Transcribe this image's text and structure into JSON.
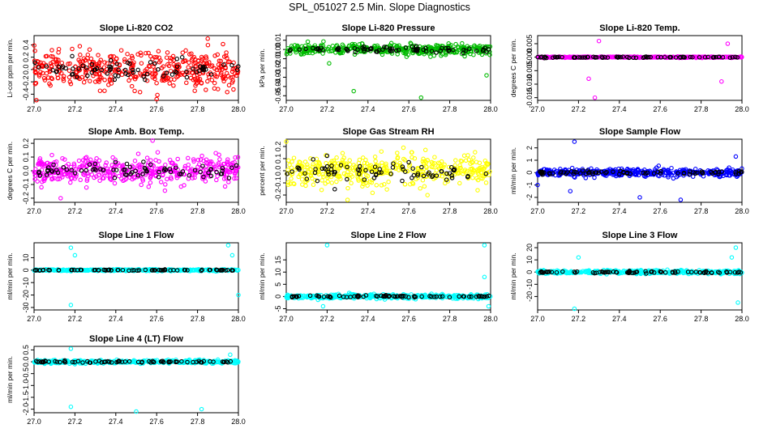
{
  "figure_title": "SPL_051027  2.5 Min. Slope Diagnostics",
  "colors": {
    "background": "#ffffff",
    "axis": "#000000",
    "secondary_points": "#000000"
  },
  "chart_data": [
    {
      "type": "scatter",
      "title": "Slope Li-820 CO2",
      "ylabel": "Li-cor ppm per min.",
      "color": "#ff0000",
      "xlim": [
        27.0,
        28.0
      ],
      "ylim": [
        -0.5,
        0.55
      ],
      "xticks": [
        "27.0",
        "27.2",
        "27.4",
        "27.6",
        "27.8",
        "28.0"
      ],
      "xtick_values": [
        27.0,
        27.2,
        27.4,
        27.6,
        27.8,
        28.0
      ],
      "yticks": [
        "-0.4",
        "-0.2",
        "0.0",
        "0.2",
        "0.4"
      ],
      "ytick_values": [
        -0.4,
        -0.2,
        0.0,
        0.2,
        0.4
      ],
      "series_spread": 0.26,
      "series_outliers": [
        [
          27.85,
          0.5
        ],
        [
          27.6,
          -0.48
        ]
      ],
      "secondary_spread": 0.18
    },
    {
      "type": "scatter",
      "title": "Slope Li-820 Pressure",
      "ylabel": "kPa per min.",
      "color": "#00bb00",
      "xlim": [
        27.0,
        28.0
      ],
      "ylim": [
        -0.055,
        0.015
      ],
      "xticks": [
        "27.0",
        "27.2",
        "27.4",
        "27.6",
        "27.8",
        "28.0"
      ],
      "xtick_values": [
        27.0,
        27.2,
        27.4,
        27.6,
        27.8,
        28.0
      ],
      "yticks": [
        "-0.05",
        "-0.04",
        "-0.03",
        "-0.02",
        "-0.01",
        "0.00",
        "0.01"
      ],
      "ytick_values": [
        -0.05,
        -0.04,
        -0.03,
        -0.02,
        -0.01,
        0.0,
        0.01
      ],
      "series_spread": 0.005,
      "series_outliers": [
        [
          27.33,
          -0.045
        ],
        [
          27.66,
          -0.052
        ],
        [
          27.98,
          -0.028
        ],
        [
          27.21,
          -0.015
        ]
      ],
      "secondary_spread": 0.003
    },
    {
      "type": "scatter",
      "title": "Slope Li-820 Temp.",
      "ylabel": "degrees C per min.",
      "color": "#ff00ff",
      "xlim": [
        27.0,
        28.0
      ],
      "ylim": [
        -0.016,
        0.008
      ],
      "xticks": [
        "27.0",
        "27.2",
        "27.4",
        "27.6",
        "27.8",
        "28.0"
      ],
      "xtick_values": [
        27.0,
        27.2,
        27.4,
        27.6,
        27.8,
        28.0
      ],
      "yticks": [
        "-0.015",
        "-0.010",
        "-0.005",
        "0.000",
        "0.005"
      ],
      "ytick_values": [
        -0.015,
        -0.01,
        -0.005,
        0.0,
        0.005
      ],
      "series_spread": 0.0002,
      "series_outliers": [
        [
          27.28,
          -0.015
        ],
        [
          27.25,
          -0.008
        ],
        [
          27.3,
          0.006
        ],
        [
          27.9,
          -0.009
        ],
        [
          27.93,
          0.005
        ]
      ],
      "secondary_spread": 0.0002
    },
    {
      "type": "scatter",
      "title": "Slope Amb. Box Temp.",
      "ylabel": "degrees C per min.",
      "color": "#ff00ff",
      "xlim": [
        27.0,
        28.0
      ],
      "ylim": [
        -0.23,
        0.23
      ],
      "xticks": [
        "27.0",
        "27.2",
        "27.4",
        "27.6",
        "27.8",
        "28.0"
      ],
      "xtick_values": [
        27.0,
        27.2,
        27.4,
        27.6,
        27.8,
        28.0
      ],
      "yticks": [
        "-0.2",
        "-0.1",
        "0.0",
        "0.1",
        "0.2"
      ],
      "ytick_values": [
        -0.2,
        -0.1,
        0.0,
        0.1,
        0.2
      ],
      "series_spread": 0.09,
      "series_outliers": [
        [
          27.58,
          0.22
        ],
        [
          27.13,
          -0.2
        ]
      ],
      "secondary_spread": 0.06
    },
    {
      "type": "scatter",
      "title": "Slope Gas Stream RH",
      "ylabel": "percent per min.",
      "color": "#ffff00",
      "xlim": [
        27.0,
        28.0
      ],
      "ylim": [
        -0.26,
        0.26
      ],
      "xticks": [
        "27.0",
        "27.2",
        "27.4",
        "27.6",
        "27.8",
        "28.0"
      ],
      "xtick_values": [
        27.0,
        27.2,
        27.4,
        27.6,
        27.8,
        28.0
      ],
      "yticks": [
        "-0.2",
        "-0.1",
        "0.0",
        "0.1",
        "0.2"
      ],
      "ytick_values": [
        -0.2,
        -0.1,
        0.0,
        0.1,
        0.2
      ],
      "series_spread": 0.11,
      "series_outliers": [
        [
          27.0,
          0.24
        ],
        [
          27.3,
          -0.24
        ]
      ],
      "secondary_spread": 0.09
    },
    {
      "type": "scatter",
      "title": "Slope Sample Flow",
      "ylabel": "ml/min per min.",
      "color": "#0000ff",
      "xlim": [
        27.0,
        28.0
      ],
      "ylim": [
        -2.4,
        2.7
      ],
      "xticks": [
        "27.0",
        "27.2",
        "27.4",
        "27.6",
        "27.8",
        "28.0"
      ],
      "xtick_values": [
        27.0,
        27.2,
        27.4,
        27.6,
        27.8,
        28.0
      ],
      "yticks": [
        "-2",
        "-1",
        "0",
        "1",
        "2"
      ],
      "ytick_values": [
        -2,
        -1,
        0,
        1,
        2
      ],
      "series_spread": 0.28,
      "series_outliers": [
        [
          27.18,
          2.5
        ],
        [
          27.16,
          -1.5
        ],
        [
          27.5,
          -2.0
        ],
        [
          27.7,
          -2.2
        ],
        [
          27.97,
          1.3
        ],
        [
          27.0,
          -1.0
        ]
      ],
      "secondary_spread": 0.15
    },
    {
      "type": "scatter",
      "title": "Slope Line 1 Flow",
      "ylabel": "ml/min per min.",
      "color": "#00ffff",
      "xlim": [
        27.0,
        28.0
      ],
      "ylim": [
        -32,
        22
      ],
      "xticks": [
        "27.0",
        "27.2",
        "27.4",
        "27.6",
        "27.8",
        "28.0"
      ],
      "xtick_values": [
        27.0,
        27.2,
        27.4,
        27.6,
        27.8,
        28.0
      ],
      "yticks": [
        "-30",
        "-20",
        "-10",
        "0",
        "10"
      ],
      "ytick_values": [
        -30,
        -20,
        -10,
        0,
        10
      ],
      "series_spread": 0.6,
      "series_outliers": [
        [
          27.18,
          18
        ],
        [
          27.18,
          -28
        ],
        [
          27.2,
          12
        ],
        [
          27.95,
          20
        ],
        [
          27.97,
          12
        ],
        [
          28.0,
          -20
        ]
      ],
      "secondary_spread": 0.3
    },
    {
      "type": "scatter",
      "title": "Slope Line 2 Flow",
      "ylabel": "ml/min per min.",
      "color": "#00ffff",
      "xlim": [
        27.0,
        28.0
      ],
      "ylim": [
        -5.5,
        22
      ],
      "xticks": [
        "27.0",
        "27.2",
        "27.4",
        "27.6",
        "27.8",
        "28.0"
      ],
      "xtick_values": [
        27.0,
        27.2,
        27.4,
        27.6,
        27.8,
        28.0
      ],
      "yticks": [
        "-5",
        "0",
        "5",
        "10",
        "15"
      ],
      "ytick_values": [
        -5,
        0,
        5,
        10,
        15
      ],
      "series_spread": 0.8,
      "series_outliers": [
        [
          27.2,
          21
        ],
        [
          27.97,
          21
        ],
        [
          27.18,
          -4
        ],
        [
          27.97,
          8
        ],
        [
          27.99,
          -4
        ]
      ],
      "secondary_spread": 0.5
    },
    {
      "type": "scatter",
      "title": "Slope Line 3 Flow",
      "ylabel": "ml/min per min.",
      "color": "#00ffff",
      "xlim": [
        27.0,
        28.0
      ],
      "ylim": [
        -31,
        24
      ],
      "xticks": [
        "27.0",
        "27.2",
        "27.4",
        "27.6",
        "27.8",
        "28.0"
      ],
      "xtick_values": [
        27.0,
        27.2,
        27.4,
        27.6,
        27.8,
        28.0
      ],
      "yticks": [
        "-20",
        "-10",
        "0",
        "10",
        "20"
      ],
      "ytick_values": [
        -20,
        -10,
        0,
        10,
        20
      ],
      "series_spread": 1.2,
      "series_outliers": [
        [
          27.18,
          -30
        ],
        [
          27.2,
          12
        ],
        [
          27.97,
          20
        ],
        [
          27.98,
          -25
        ],
        [
          27.95,
          12
        ]
      ],
      "secondary_spread": 0.8
    },
    {
      "type": "scatter",
      "title": "Slope Line 4 (LT) Flow",
      "ylabel": "ml/min per min.",
      "color": "#00ffff",
      "xlim": [
        27.0,
        28.0
      ],
      "ylim": [
        -2.15,
        0.65
      ],
      "xticks": [
        "27.0",
        "27.2",
        "27.4",
        "27.6",
        "27.8",
        "28.0"
      ],
      "xtick_values": [
        27.0,
        27.2,
        27.4,
        27.6,
        27.8,
        28.0
      ],
      "yticks": [
        "-2.0",
        "-1.5",
        "-1.0",
        "-0.5",
        "0.0",
        "0.5"
      ],
      "ytick_values": [
        -2.0,
        -1.5,
        -1.0,
        -0.5,
        0.0,
        0.5
      ],
      "series_spread": 0.06,
      "series_outliers": [
        [
          27.18,
          0.55
        ],
        [
          27.18,
          -1.9
        ],
        [
          27.5,
          -2.1
        ],
        [
          27.82,
          -2.0
        ],
        [
          27.96,
          0.3
        ],
        [
          27.2,
          -0.1
        ]
      ],
      "secondary_spread": 0.04
    }
  ]
}
